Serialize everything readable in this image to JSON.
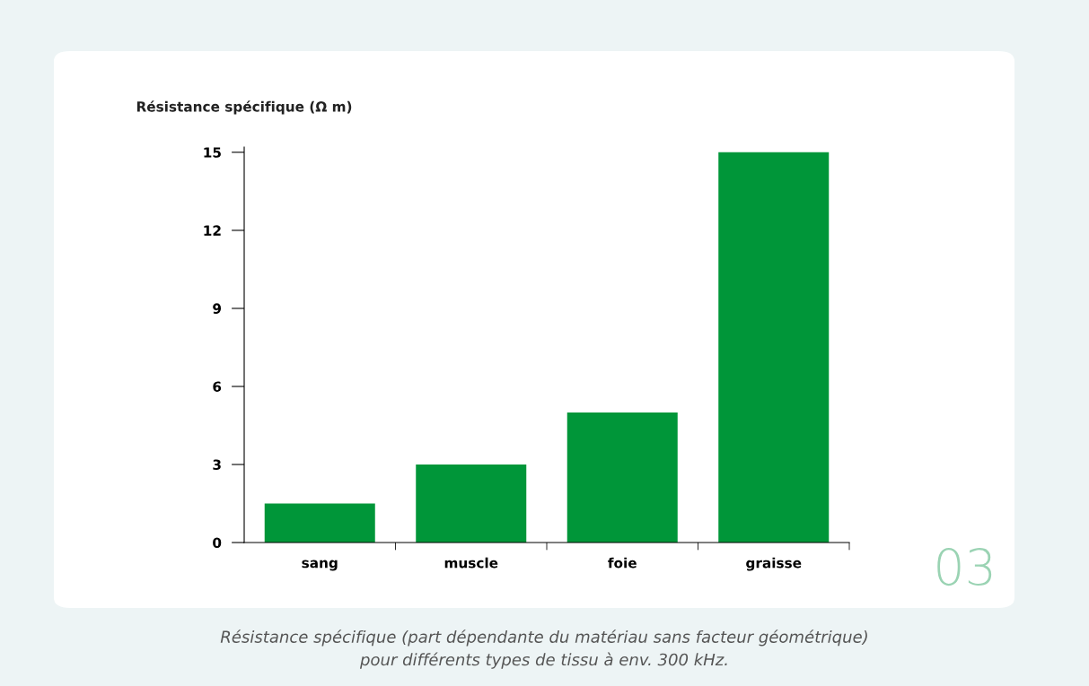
{
  "chart_data": {
    "type": "bar",
    "ylabel": "Résistance spécifique (Ω m)",
    "categories": [
      "sang",
      "muscle",
      "foie",
      "graisse"
    ],
    "values": [
      1.5,
      3,
      5,
      15
    ],
    "color": "#009639",
    "ylim": [
      0,
      15.2
    ],
    "yticks": [
      0,
      3,
      6,
      9,
      12,
      15
    ],
    "grid": false,
    "annotations": [
      "03",
      "Résistance spécifique (part dépendante du matériau sans facteur géométrique)\npour différents types de tissu à env. 300 kHz."
    ]
  }
}
